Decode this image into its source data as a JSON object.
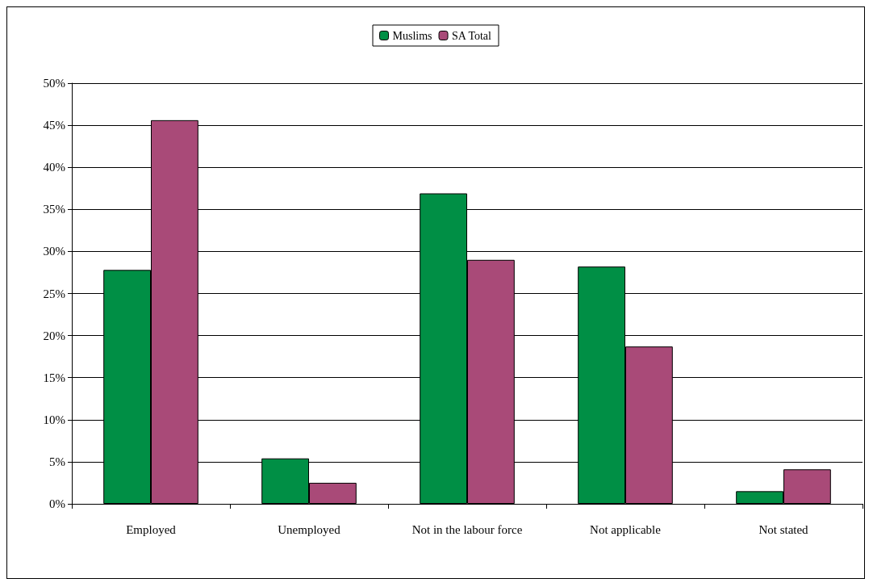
{
  "chart_data": {
    "type": "bar",
    "categories": [
      "Employed",
      "Unemployed",
      "Not in the labour force",
      "Not applicable",
      "Not stated"
    ],
    "series": [
      {
        "name": "Muslims",
        "color": "#008f45",
        "values": [
          27.8,
          5.4,
          36.9,
          28.2,
          1.5
        ]
      },
      {
        "name": "SA Total",
        "color": "#a94a78",
        "values": [
          45.6,
          2.5,
          29.0,
          18.7,
          4.1
        ]
      }
    ],
    "ylim": [
      0,
      50
    ],
    "yticks": [
      {
        "value": 0,
        "label": "0%"
      },
      {
        "value": 5,
        "label": "5%"
      },
      {
        "value": 10,
        "label": "10%"
      },
      {
        "value": 15,
        "label": "15%"
      },
      {
        "value": 20,
        "label": "20%"
      },
      {
        "value": 25,
        "label": "25%"
      },
      {
        "value": 30,
        "label": "30%"
      },
      {
        "value": 35,
        "label": "35%"
      },
      {
        "value": 40,
        "label": "40%"
      },
      {
        "value": 45,
        "label": "45%"
      },
      {
        "value": 50,
        "label": "50%"
      }
    ],
    "grid": "y",
    "legend": "top"
  }
}
